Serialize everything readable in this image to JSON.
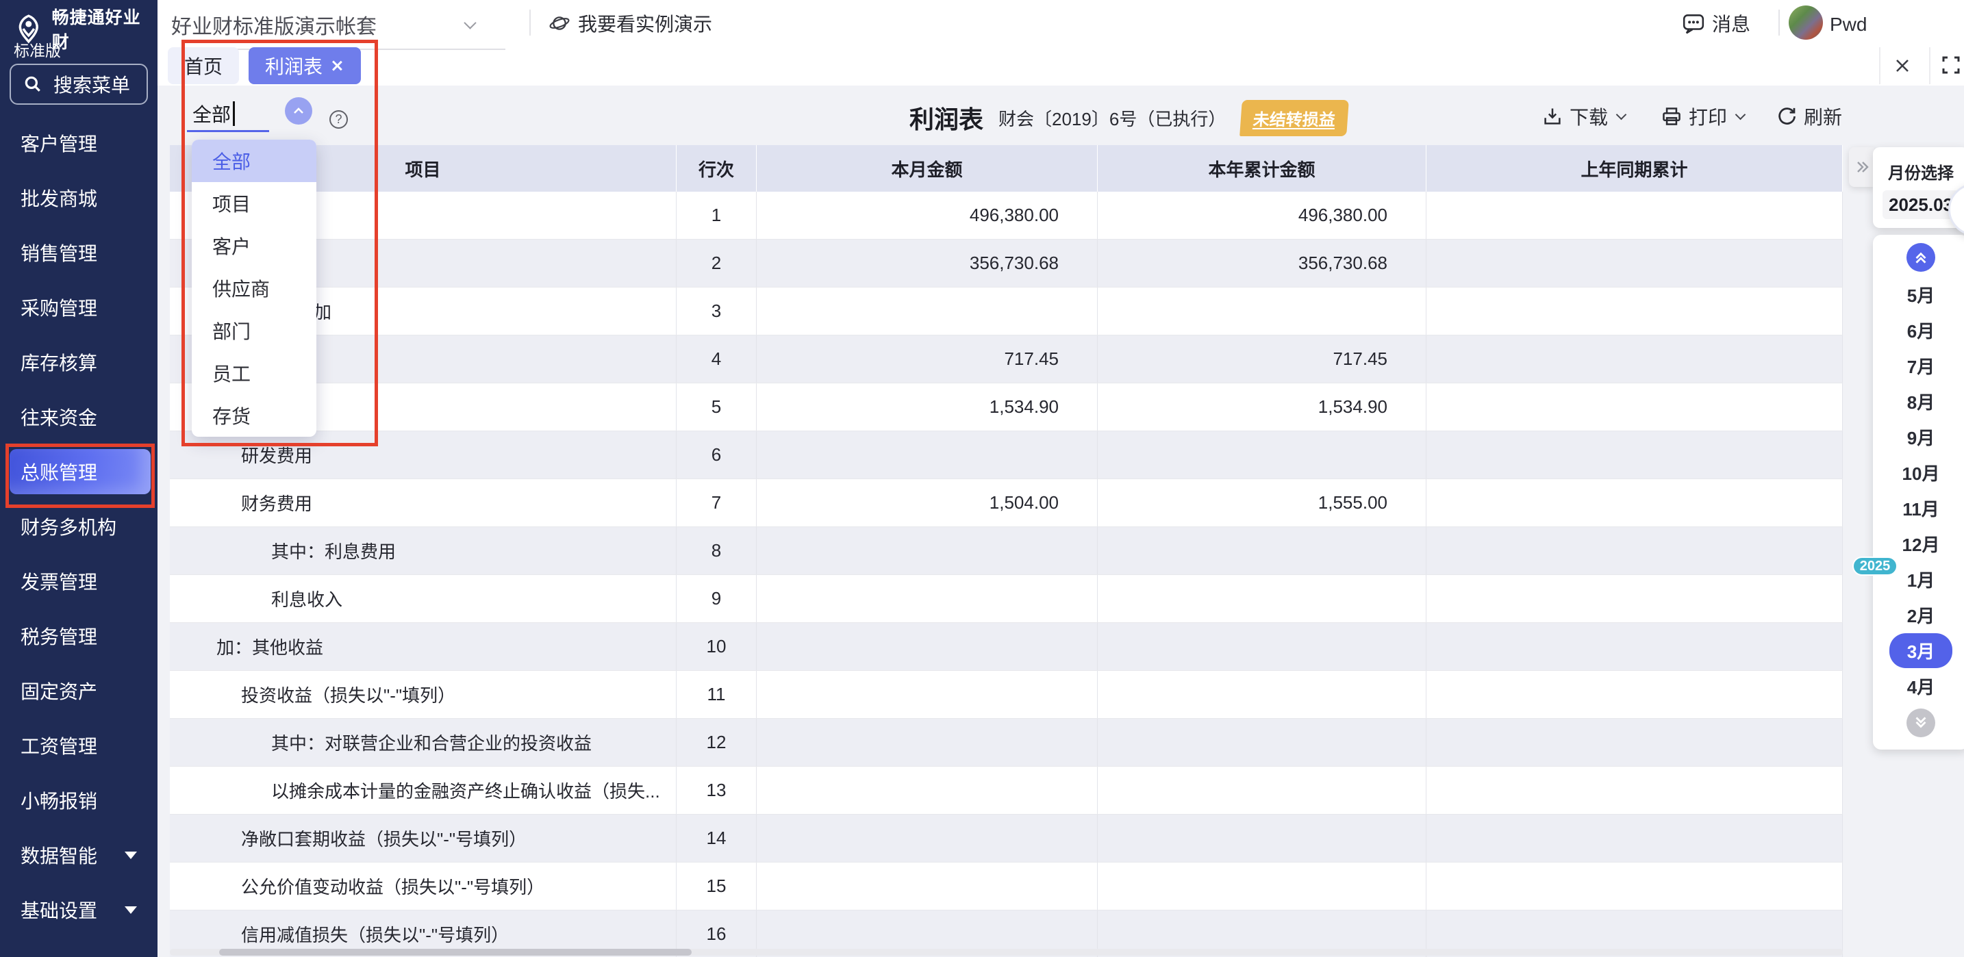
{
  "topbar": {
    "logo_title": "畅捷通好业财",
    "logo_subtitle": "标准版",
    "account_select": "好业财标准版演示帐套",
    "demo_link": "我要看实例演示",
    "messages_label": "消息",
    "user_name": "Pwd"
  },
  "sidebar": {
    "search_label": "搜索菜单",
    "items": [
      {
        "id": "customer-management",
        "label": "客户管理"
      },
      {
        "id": "wholesale-mall",
        "label": "批发商城"
      },
      {
        "id": "sales-management",
        "label": "销售管理"
      },
      {
        "id": "purchase-management",
        "label": "采购管理"
      },
      {
        "id": "inventory-accounting",
        "label": "库存核算"
      },
      {
        "id": "receivable-funds",
        "label": "往来资金"
      },
      {
        "id": "general-ledger",
        "label": "总账管理",
        "active": true,
        "annotated": true
      },
      {
        "id": "finance-multi-org",
        "label": "财务多机构"
      },
      {
        "id": "invoice-management",
        "label": "发票管理"
      },
      {
        "id": "tax-management",
        "label": "税务管理"
      },
      {
        "id": "fixed-assets",
        "label": "固定资产"
      },
      {
        "id": "payroll-management",
        "label": "工资管理"
      },
      {
        "id": "xiaochang-expense",
        "label": "小畅报销"
      },
      {
        "id": "data-intelligence",
        "label": "数据智能",
        "has_submenu": true
      },
      {
        "id": "basic-settings",
        "label": "基础设置",
        "has_submenu": true
      }
    ]
  },
  "tabs": [
    {
      "id": "home",
      "label": "首页"
    },
    {
      "id": "profit-statement",
      "label": "利润表",
      "active": true,
      "closable": true
    }
  ],
  "filter": {
    "value": "全部",
    "help_icon": "?",
    "options": [
      {
        "id": "all",
        "label": "全部",
        "selected": true
      },
      {
        "id": "project",
        "label": "项目"
      },
      {
        "id": "customer",
        "label": "客户"
      },
      {
        "id": "supplier",
        "label": "供应商"
      },
      {
        "id": "department",
        "label": "部门"
      },
      {
        "id": "employee",
        "label": "员工"
      },
      {
        "id": "inventory",
        "label": "存货"
      }
    ]
  },
  "report": {
    "title": "利润表",
    "subtitle": "财会〔2019〕6号（已执行）",
    "badge": "未结转损益",
    "toolbar": {
      "download": "下载",
      "print": "打印",
      "refresh": "刷新"
    }
  },
  "table": {
    "columns": [
      "项目",
      "行次",
      "本月金额",
      "本年累计金额",
      "上年同期累计"
    ],
    "rows": [
      {
        "item": "",
        "line": "1",
        "month": "496,380.00",
        "ytd": "496,380.00",
        "prior": "",
        "indent": 0
      },
      {
        "item": "",
        "line": "2",
        "month": "356,730.68",
        "ytd": "356,730.68",
        "prior": "",
        "indent": 0
      },
      {
        "item": "加",
        "line": "3",
        "month": "",
        "ytd": "",
        "prior": "",
        "indent": 5
      },
      {
        "item": "",
        "line": "4",
        "month": "717.45",
        "ytd": "717.45",
        "prior": "",
        "indent": 0
      },
      {
        "item": "",
        "line": "5",
        "month": "1,534.90",
        "ytd": "1,534.90",
        "prior": "",
        "indent": 0
      },
      {
        "item": "研发费用",
        "line": "6",
        "month": "",
        "ytd": "",
        "prior": "",
        "indent": 2
      },
      {
        "item": "财务费用",
        "line": "7",
        "month": "1,504.00",
        "ytd": "1,555.00",
        "prior": "",
        "indent": 2
      },
      {
        "item": "其中：利息费用",
        "line": "8",
        "month": "",
        "ytd": "",
        "prior": "",
        "indent": 3
      },
      {
        "item": "利息收入",
        "line": "9",
        "month": "",
        "ytd": "",
        "prior": "",
        "indent": 3
      },
      {
        "item": "加：其他收益",
        "line": "10",
        "month": "",
        "ytd": "",
        "prior": "",
        "indent": 1
      },
      {
        "item": "投资收益（损失以\"-\"填列）",
        "line": "11",
        "month": "",
        "ytd": "",
        "prior": "",
        "indent": 2
      },
      {
        "item": "其中：对联营企业和合营企业的投资收益",
        "line": "12",
        "month": "",
        "ytd": "",
        "prior": "",
        "indent": 3
      },
      {
        "item": "以摊余成本计量的金融资产终止确认收益（损失...",
        "line": "13",
        "month": "",
        "ytd": "",
        "prior": "",
        "indent": 3
      },
      {
        "item": "净敞口套期收益（损失以\"-\"号填列）",
        "line": "14",
        "month": "",
        "ytd": "",
        "prior": "",
        "indent": 2
      },
      {
        "item": "公允价值变动收益（损失以\"-\"号填列）",
        "line": "15",
        "month": "",
        "ytd": "",
        "prior": "",
        "indent": 2
      },
      {
        "item": "信用减值损失（损失以\"-\"号填列）",
        "line": "16",
        "month": "",
        "ytd": "",
        "prior": "",
        "indent": 2
      }
    ]
  },
  "month_panel": {
    "title": "月份选择",
    "current": "2025.03",
    "months": [
      "5月",
      "6月",
      "7月",
      "8月",
      "9月",
      "10月",
      "11月",
      "12月",
      "1月",
      "2月",
      "3月",
      "4月"
    ],
    "selected_month": "3月",
    "year_badge": {
      "label": "2025",
      "before": "1月"
    }
  },
  "colors": {
    "accent": "#5565EA",
    "tab_active": "#6F7DEB",
    "sidebar_bg": "#1F2B55",
    "annotation_red": "#E5402C",
    "badge_yellow": "#EBB64E",
    "year_badge_teal": "#41B5CF",
    "table_header_bg": "#DFE2F0",
    "row_alt_bg": "#EDEEF4",
    "content_bg": "#F1F2F6"
  },
  "icons": {
    "logo-icon": "chanjet-mark",
    "search-icon": "magnifier",
    "chevron-down-icon": "chevron-down",
    "planet-icon": "ringed-planet",
    "message-icon": "speech-bubble-dots",
    "close-icon": "x-mark",
    "fullscreen-icon": "expand-corners",
    "caret-up-icon": "chevron-up-circle",
    "help-icon": "question-circle",
    "download-icon": "tray-download",
    "print-icon": "printer",
    "refresh-icon": "circular-arrow",
    "collapse-icon": "double-chevron-right",
    "scroll-up-icon": "double-chevron-up-circle",
    "scroll-down-icon": "double-chevron-down-circle",
    "robot-icon": "ai-assistant-robot"
  }
}
